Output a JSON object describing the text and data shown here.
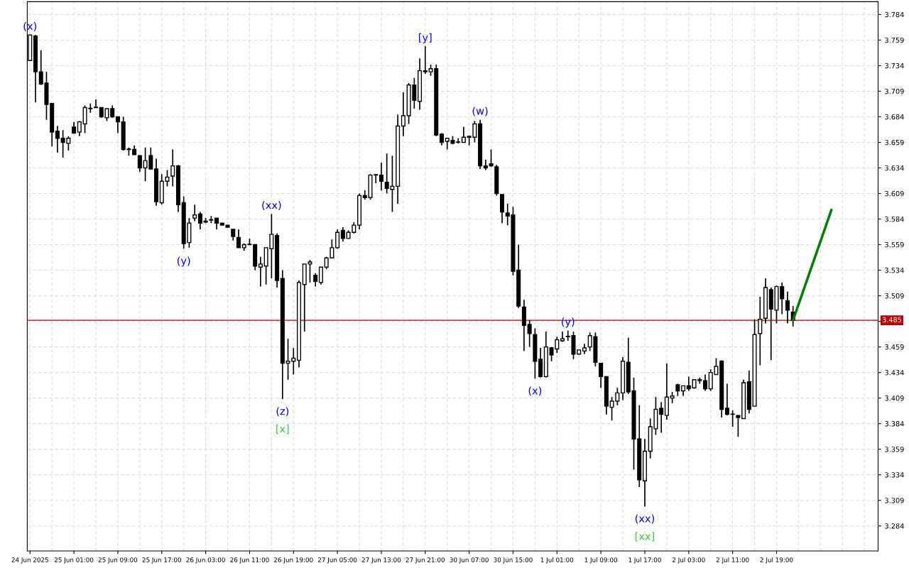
{
  "chart_data": {
    "type": "candlestick",
    "categories": [
      "24 Jun 2025",
      null,
      null,
      null,
      null,
      null,
      null,
      null,
      "25 Jun 01:00",
      null,
      null,
      null,
      null,
      null,
      null,
      null,
      "25 Jun 09:00",
      null,
      null,
      null,
      null,
      null,
      null,
      null,
      "25 Jun 17:00",
      null,
      null,
      null,
      null,
      null,
      null,
      null,
      "26 Jun 03:00",
      null,
      null,
      null,
      null,
      null,
      null,
      null,
      "26 Jun 11:00",
      null,
      null,
      null,
      null,
      null,
      null,
      null,
      "26 Jun 19:00",
      null,
      null,
      null,
      null,
      null,
      null,
      null,
      "27 Jun 05:00",
      null,
      null,
      null,
      null,
      null,
      null,
      null,
      "27 Jun 13:00",
      null,
      null,
      null,
      null,
      null,
      null,
      null,
      "27 Jun 21:00",
      null,
      null,
      null,
      null,
      null,
      null,
      null,
      "30 Jun 07:00",
      null,
      null,
      null,
      null,
      null,
      null,
      null,
      "30 Jun 15:00",
      null,
      null,
      null,
      null,
      null,
      null,
      null,
      "1 Jul 01:00",
      null,
      null,
      null,
      null,
      null,
      null,
      null,
      "1 Jul 09:00",
      null,
      null,
      null,
      null,
      null,
      null,
      null,
      "1 Jul 17:00",
      null,
      null,
      null,
      null,
      null,
      null,
      null,
      "2 Jul 03:00",
      null,
      null,
      null,
      null,
      null,
      null,
      null,
      "2 Jul 11:00",
      null,
      null,
      null,
      null,
      null,
      null,
      null,
      "2 Jul 19:00",
      null,
      null,
      null,
      null,
      null,
      null,
      null,
      null,
      null,
      null,
      null,
      null,
      null,
      null,
      null,
      null,
      null,
      null
    ],
    "ohlc": [
      [
        3.739,
        3.764,
        3.739,
        3.764
      ],
      [
        3.763,
        3.764,
        3.698,
        3.728
      ],
      [
        3.728,
        3.749,
        3.715,
        3.716
      ],
      [
        3.717,
        3.728,
        3.681,
        3.696
      ],
      [
        3.697,
        3.697,
        3.655,
        3.669
      ],
      [
        3.67,
        3.675,
        3.649,
        3.663
      ],
      [
        3.663,
        3.671,
        3.644,
        3.659
      ],
      [
        3.658,
        3.665,
        3.651,
        3.663
      ],
      [
        3.674,
        3.679,
        3.668,
        3.668
      ],
      [
        3.669,
        3.68,
        3.665,
        3.679
      ],
      [
        3.677,
        3.695,
        3.668,
        3.693
      ],
      [
        3.692,
        3.697,
        3.688,
        3.692
      ],
      [
        3.693,
        3.701,
        3.693,
        3.693
      ],
      [
        3.693,
        3.693,
        3.683,
        3.684
      ],
      [
        3.683,
        3.692,
        3.68,
        3.692
      ],
      [
        3.692,
        3.695,
        3.683,
        3.684
      ],
      [
        3.684,
        3.684,
        3.668,
        3.679
      ],
      [
        3.679,
        3.684,
        3.651,
        3.652
      ],
      [
        3.652,
        3.654,
        3.646,
        3.652
      ],
      [
        3.652,
        3.656,
        3.647,
        3.647
      ],
      [
        3.646,
        3.646,
        3.63,
        3.634
      ],
      [
        3.634,
        3.654,
        3.621,
        3.641
      ],
      [
        3.646,
        3.654,
        3.633,
        3.633
      ],
      [
        3.633,
        3.643,
        3.597,
        3.601
      ],
      [
        3.6,
        3.628,
        3.598,
        3.621
      ],
      [
        3.621,
        3.632,
        3.616,
        3.625
      ],
      [
        3.626,
        3.652,
        3.616,
        3.636
      ],
      [
        3.636,
        3.637,
        3.591,
        3.598
      ],
      [
        3.6,
        3.606,
        3.555,
        3.56
      ],
      [
        3.561,
        3.585,
        3.556,
        3.58
      ],
      [
        3.585,
        3.598,
        3.582,
        3.588
      ],
      [
        3.589,
        3.591,
        3.574,
        3.58
      ],
      [
        3.582,
        3.585,
        3.58,
        3.581
      ],
      [
        3.583,
        3.587,
        3.58,
        3.583
      ],
      [
        3.585,
        3.585,
        3.574,
        3.58
      ],
      [
        3.58,
        3.58,
        3.578,
        3.578
      ],
      [
        3.578,
        3.578,
        3.576,
        3.576
      ],
      [
        3.574,
        3.574,
        3.563,
        3.567
      ],
      [
        3.566,
        3.574,
        3.556,
        3.556
      ],
      [
        3.556,
        3.56,
        3.553,
        3.559
      ],
      [
        3.559,
        3.565,
        3.559,
        3.559
      ],
      [
        3.559,
        3.559,
        3.534,
        3.538
      ],
      [
        3.537,
        3.547,
        3.518,
        3.54
      ],
      [
        3.538,
        3.556,
        3.52,
        3.556
      ],
      [
        3.555,
        3.589,
        3.526,
        3.569
      ],
      [
        3.568,
        3.57,
        3.517,
        3.524
      ],
      [
        3.526,
        3.534,
        3.408,
        3.443
      ],
      [
        3.443,
        3.467,
        3.427,
        3.445
      ],
      [
        3.445,
        3.458,
        3.432,
        3.448
      ],
      [
        3.446,
        3.524,
        3.439,
        3.522
      ],
      [
        3.52,
        3.54,
        3.474,
        3.54
      ],
      [
        3.54,
        3.544,
        3.522,
        3.542
      ],
      [
        3.529,
        3.531,
        3.518,
        3.523
      ],
      [
        3.522,
        3.537,
        3.52,
        3.537
      ],
      [
        3.537,
        3.547,
        3.535,
        3.546
      ],
      [
        3.546,
        3.564,
        3.546,
        3.556
      ],
      [
        3.556,
        3.574,
        3.555,
        3.571
      ],
      [
        3.573,
        3.576,
        3.562,
        3.565
      ],
      [
        3.565,
        3.573,
        3.565,
        3.571
      ],
      [
        3.571,
        3.581,
        3.57,
        3.578
      ],
      [
        3.578,
        3.609,
        3.574,
        3.607
      ],
      [
        3.607,
        3.612,
        3.603,
        3.605
      ],
      [
        3.605,
        3.628,
        3.603,
        3.627
      ],
      [
        3.627,
        3.628,
        3.619,
        3.627
      ],
      [
        3.627,
        3.639,
        3.612,
        3.621
      ],
      [
        3.62,
        3.648,
        3.609,
        3.614
      ],
      [
        3.613,
        3.646,
        3.591,
        3.616
      ],
      [
        3.616,
        3.686,
        3.599,
        3.675
      ],
      [
        3.675,
        3.708,
        3.665,
        3.685
      ],
      [
        3.685,
        3.717,
        3.677,
        3.715
      ],
      [
        3.715,
        3.722,
        3.692,
        3.7
      ],
      [
        3.699,
        3.741,
        3.691,
        3.729
      ],
      [
        3.729,
        3.753,
        3.726,
        3.728
      ],
      [
        3.728,
        3.735,
        3.724,
        3.731
      ],
      [
        3.731,
        3.735,
        3.665,
        3.666
      ],
      [
        3.667,
        3.668,
        3.656,
        3.659
      ],
      [
        3.66,
        3.663,
        3.652,
        3.663
      ],
      [
        3.661,
        3.665,
        3.657,
        3.658
      ],
      [
        3.659,
        3.663,
        3.658,
        3.659
      ],
      [
        3.659,
        3.674,
        3.659,
        3.664
      ],
      [
        3.664,
        3.665,
        3.656,
        3.665
      ],
      [
        3.664,
        3.68,
        3.659,
        3.677
      ],
      [
        3.677,
        3.681,
        3.633,
        3.636
      ],
      [
        3.636,
        3.642,
        3.632,
        3.634
      ],
      [
        3.638,
        3.652,
        3.635,
        3.636
      ],
      [
        3.635,
        3.637,
        3.607,
        3.609
      ],
      [
        3.608,
        3.608,
        3.58,
        3.591
      ],
      [
        3.59,
        3.599,
        3.578,
        3.587
      ],
      [
        3.588,
        3.596,
        3.529,
        3.533
      ],
      [
        3.534,
        3.559,
        3.497,
        3.499
      ],
      [
        3.498,
        3.505,
        3.455,
        3.48
      ],
      [
        3.481,
        3.485,
        3.459,
        3.472
      ],
      [
        3.471,
        3.477,
        3.428,
        3.445
      ],
      [
        3.447,
        3.458,
        3.429,
        3.43
      ],
      [
        3.43,
        3.474,
        3.429,
        3.459
      ],
      [
        3.458,
        3.459,
        3.445,
        3.451
      ],
      [
        3.457,
        3.469,
        3.453,
        3.466
      ],
      [
        3.465,
        3.474,
        3.464,
        3.467
      ],
      [
        3.469,
        3.475,
        3.465,
        3.469
      ],
      [
        3.47,
        3.474,
        3.447,
        3.452
      ],
      [
        3.452,
        3.456,
        3.452,
        3.456
      ],
      [
        3.455,
        3.462,
        3.452,
        3.458
      ],
      [
        3.459,
        3.473,
        3.455,
        3.47
      ],
      [
        3.469,
        3.473,
        3.44,
        3.444
      ],
      [
        3.443,
        3.443,
        3.419,
        3.43
      ],
      [
        3.43,
        3.43,
        3.393,
        3.401
      ],
      [
        3.4,
        3.41,
        3.387,
        3.406
      ],
      [
        3.406,
        3.419,
        3.402,
        3.414
      ],
      [
        3.414,
        3.449,
        3.407,
        3.445
      ],
      [
        3.444,
        3.468,
        3.413,
        3.415
      ],
      [
        3.416,
        3.429,
        3.339,
        3.369
      ],
      [
        3.369,
        3.402,
        3.322,
        3.329
      ],
      [
        3.328,
        3.369,
        3.303,
        3.357
      ],
      [
        3.357,
        3.389,
        3.35,
        3.381
      ],
      [
        3.379,
        3.41,
        3.373,
        3.398
      ],
      [
        3.399,
        3.405,
        3.375,
        3.393
      ],
      [
        3.392,
        3.443,
        3.388,
        3.41
      ],
      [
        3.409,
        3.415,
        3.404,
        3.411
      ],
      [
        3.422,
        3.423,
        3.411,
        3.416
      ],
      [
        3.416,
        3.421,
        3.411,
        3.421
      ],
      [
        3.421,
        3.43,
        3.416,
        3.418
      ],
      [
        3.419,
        3.427,
        3.418,
        3.427
      ],
      [
        3.426,
        3.429,
        3.423,
        3.427
      ],
      [
        3.426,
        3.432,
        3.416,
        3.418
      ],
      [
        3.418,
        3.437,
        3.416,
        3.434
      ],
      [
        3.432,
        3.448,
        3.432,
        3.44
      ],
      [
        3.445,
        3.446,
        3.39,
        3.398
      ],
      [
        3.399,
        3.423,
        3.392,
        3.393
      ],
      [
        3.393,
        3.397,
        3.381,
        3.393
      ],
      [
        3.392,
        3.392,
        3.371,
        3.39
      ],
      [
        3.389,
        3.427,
        3.389,
        3.424
      ],
      [
        3.425,
        3.436,
        3.394,
        3.398
      ],
      [
        3.401,
        3.486,
        3.401,
        3.471
      ],
      [
        3.472,
        3.508,
        3.441,
        3.486
      ],
      [
        3.487,
        3.526,
        3.482,
        3.517
      ],
      [
        3.515,
        3.517,
        3.446,
        3.496
      ],
      [
        3.495,
        3.519,
        3.482,
        3.518
      ],
      [
        3.518,
        3.522,
        3.491,
        3.506
      ],
      [
        3.504,
        3.513,
        3.482,
        3.495
      ],
      [
        3.493,
        3.499,
        3.479,
        3.485
      ],
      null,
      null,
      null,
      null,
      null,
      null,
      null,
      null,
      null,
      null,
      null,
      null,
      null,
      null,
      null
    ],
    "color": "#000000",
    "series": [
      {
        "type": "line",
        "values": [
          null,
          null,
          null,
          null,
          null,
          null,
          null,
          null,
          null,
          null,
          null,
          null,
          null,
          null,
          null,
          null,
          null,
          null,
          null,
          null,
          null,
          null,
          null,
          null,
          null,
          null,
          null,
          null,
          null,
          null,
          null,
          null,
          null,
          null,
          null,
          null,
          null,
          null,
          null,
          null,
          null,
          null,
          null,
          null,
          null,
          null,
          null,
          null,
          null,
          null,
          null,
          null,
          null,
          null,
          null,
          null,
          null,
          null,
          null,
          null,
          null,
          null,
          null,
          null,
          null,
          null,
          null,
          null,
          null,
          null,
          null,
          null,
          null,
          null,
          null,
          null,
          null,
          null,
          null,
          null,
          null,
          null,
          null,
          null,
          null,
          null,
          null,
          null,
          null,
          null,
          null,
          null,
          null,
          null,
          null,
          null,
          null,
          null,
          null,
          null,
          null,
          null,
          null,
          null,
          null,
          null,
          null,
          null,
          null,
          null,
          null,
          null,
          null,
          null,
          null,
          null,
          null,
          null,
          null,
          null,
          null,
          null,
          null,
          null,
          null,
          null,
          null,
          null,
          null,
          null,
          null,
          null,
          null,
          null,
          null,
          null,
          null,
          null,
          null,
          3.485,
          null,
          null,
          null,
          null,
          null,
          null,
          3.593,
          null,
          null,
          null,
          null,
          null,
          null,
          null,
          null
        ],
        "color": "#008000"
      }
    ],
    "ylim": [
      3.2595,
      3.7965
    ],
    "yticks": [
      3.284,
      3.309,
      3.334,
      3.359,
      3.384,
      3.409,
      3.434,
      3.459,
      {
        "value": 3.484,
        "label": null
      },
      3.509,
      3.534,
      3.559,
      3.584,
      3.609,
      3.634,
      3.659,
      3.684,
      3.709,
      3.734,
      3.759,
      3.784
    ],
    "grid": true,
    "ref_lines": [
      {
        "axis": "y",
        "value": 3.485,
        "label": "3.485",
        "color": "#c00000"
      }
    ],
    "annotations": [
      {
        "text": "(x)",
        "x": "24 Jun 2025",
        "y": 3.764
      },
      {
        "text": "(y)",
        "y": 3.555
      },
      {
        "text": "(xx)",
        "y": 3.589
      },
      {
        "text": "(z)",
        "y": 3.408
      },
      {
        "text": "[x]",
        "y": 3.408
      },
      {
        "text": "[y]",
        "x": "27 Jun 21:00",
        "y": 3.753
      },
      {
        "text": "(w)",
        "y": 3.681
      },
      {
        "text": "(x)",
        "y": 3.428
      },
      {
        "text": "(y)",
        "y": 3.475
      },
      {
        "text": "(xx)",
        "x": "1 Jul 17:00",
        "y": 3.303
      },
      {
        "text": "[xx]",
        "x": "1 Jul 17:00",
        "y": 3.303
      }
    ]
  }
}
